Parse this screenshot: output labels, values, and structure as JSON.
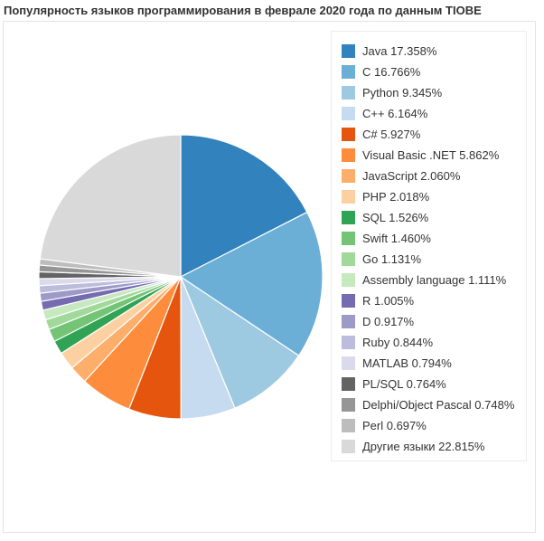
{
  "chart_data": {
    "type": "pie",
    "title": "Популярность языков программирования в феврале 2020 года по данным TIOBE",
    "legend_position": "right",
    "slices": [
      {
        "label": "Java 17.358%",
        "value": 17.358,
        "color": "#3182bd"
      },
      {
        "label": "C 16.766%",
        "value": 16.766,
        "color": "#6baed6"
      },
      {
        "label": "Python 9.345%",
        "value": 9.345,
        "color": "#9ecae1"
      },
      {
        "label": "C++ 6.164%",
        "value": 6.164,
        "color": "#c6dbef"
      },
      {
        "label": "C# 5.927%",
        "value": 5.927,
        "color": "#e6550d"
      },
      {
        "label": "Visual Basic .NET 5.862%",
        "value": 5.862,
        "color": "#fd8d3c"
      },
      {
        "label": "JavaScript 2.060%",
        "value": 2.06,
        "color": "#fdae6b"
      },
      {
        "label": "PHP 2.018%",
        "value": 2.018,
        "color": "#fdd0a2"
      },
      {
        "label": "SQL 1.526%",
        "value": 1.526,
        "color": "#31a354"
      },
      {
        "label": "Swift 1.460%",
        "value": 1.46,
        "color": "#74c476"
      },
      {
        "label": "Go 1.131%",
        "value": 1.131,
        "color": "#a1d99b"
      },
      {
        "label": "Assembly language 1.111%",
        "value": 1.111,
        "color": "#c7e9c0"
      },
      {
        "label": "R 1.005%",
        "value": 1.005,
        "color": "#756bb1"
      },
      {
        "label": "D 0.917%",
        "value": 0.917,
        "color": "#9e9ac8"
      },
      {
        "label": "Ruby 0.844%",
        "value": 0.844,
        "color": "#bcbddc"
      },
      {
        "label": "MATLAB 0.794%",
        "value": 0.794,
        "color": "#dadaeb"
      },
      {
        "label": "PL/SQL 0.764%",
        "value": 0.764,
        "color": "#636363"
      },
      {
        "label": "Delphi/Object Pascal 0.748%",
        "value": 0.748,
        "color": "#969696"
      },
      {
        "label": "Perl 0.697%",
        "value": 0.697,
        "color": "#bdbdbd"
      },
      {
        "label": "Другие языки 22.815%",
        "value": 22.815,
        "color": "#d9d9d9"
      }
    ]
  }
}
